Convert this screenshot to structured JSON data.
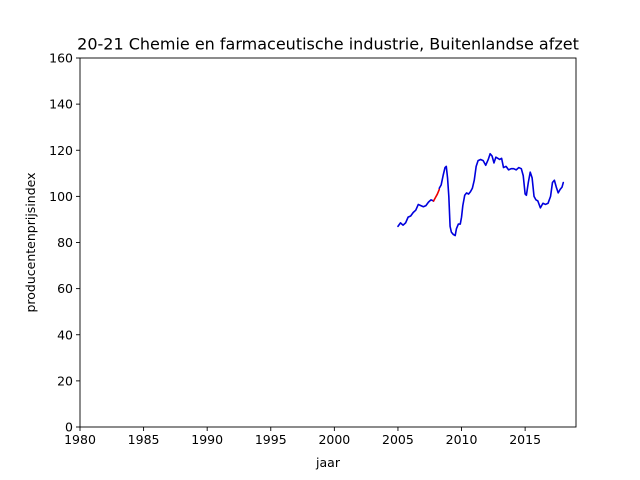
{
  "chart_data": {
    "type": "line",
    "title": "20-21 Chemie en farmaceutische industrie, Buitenlandse afzet",
    "xlabel": "jaar",
    "ylabel": "producentenprijsindex",
    "xlim": [
      1980,
      2019
    ],
    "ylim": [
      0,
      160
    ],
    "xticks": [
      1980,
      1985,
      1990,
      1995,
      2000,
      2005,
      2010,
      2015
    ],
    "yticks": [
      0,
      20,
      40,
      60,
      80,
      100,
      120,
      140,
      160
    ],
    "grid": false,
    "series": [
      {
        "color": "#0000dd",
        "segment": "before",
        "x": [
          2005.0,
          2005.2,
          2005.4,
          2005.6,
          2005.8,
          2006.0,
          2006.2,
          2006.4,
          2006.6,
          2006.8,
          2007.0,
          2007.2,
          2007.4,
          2007.6,
          2007.8
        ],
        "y": [
          87,
          88.5,
          87.5,
          88.5,
          91,
          91.5,
          93,
          94,
          96.5,
          96,
          95.5,
          96,
          97.5,
          98.5,
          98
        ]
      },
      {
        "color": "#ee0000",
        "segment": "highlight",
        "x": [
          2007.8,
          2007.95,
          2008.1,
          2008.25
        ],
        "y": [
          98,
          99.5,
          101,
          103
        ]
      },
      {
        "color": "#0000dd",
        "segment": "after",
        "x": [
          2008.25,
          2008.4,
          2008.55,
          2008.7,
          2008.8,
          2008.9,
          2009.0,
          2009.1,
          2009.2,
          2009.35,
          2009.5,
          2009.6,
          2009.75,
          2009.9,
          2010.0,
          2010.1,
          2010.25,
          2010.4,
          2010.55,
          2010.7,
          2010.85,
          2011.0,
          2011.15,
          2011.3,
          2011.5,
          2011.7,
          2011.9,
          2012.1,
          2012.25,
          2012.4,
          2012.55,
          2012.7,
          2012.85,
          2013.0,
          2013.15,
          2013.3,
          2013.5,
          2013.7,
          2013.9,
          2014.1,
          2014.3,
          2014.5,
          2014.7,
          2014.85,
          2015.0,
          2015.1,
          2015.25,
          2015.4,
          2015.55,
          2015.7,
          2015.85,
          2016.0,
          2016.2,
          2016.4,
          2016.6,
          2016.8,
          2017.0,
          2017.15,
          2017.3,
          2017.45,
          2017.6,
          2017.75,
          2017.9,
          2018.0
        ],
        "y": [
          103.5,
          105,
          109,
          112.5,
          113,
          108,
          100,
          87,
          84.5,
          83.5,
          83,
          86,
          88,
          88,
          91,
          96,
          100.5,
          101.5,
          101,
          102,
          103.5,
          107,
          113,
          115.5,
          116,
          115.5,
          113.5,
          116,
          118.5,
          117.5,
          114.5,
          117,
          116.5,
          116,
          116.5,
          112.5,
          113,
          111.5,
          112,
          112,
          111.5,
          112.5,
          112,
          109,
          101,
          100.5,
          106,
          110.5,
          108,
          100,
          98.5,
          98,
          95,
          97,
          96.5,
          97,
          100,
          106,
          107,
          104,
          101.5,
          103,
          104,
          106
        ]
      }
    ]
  }
}
